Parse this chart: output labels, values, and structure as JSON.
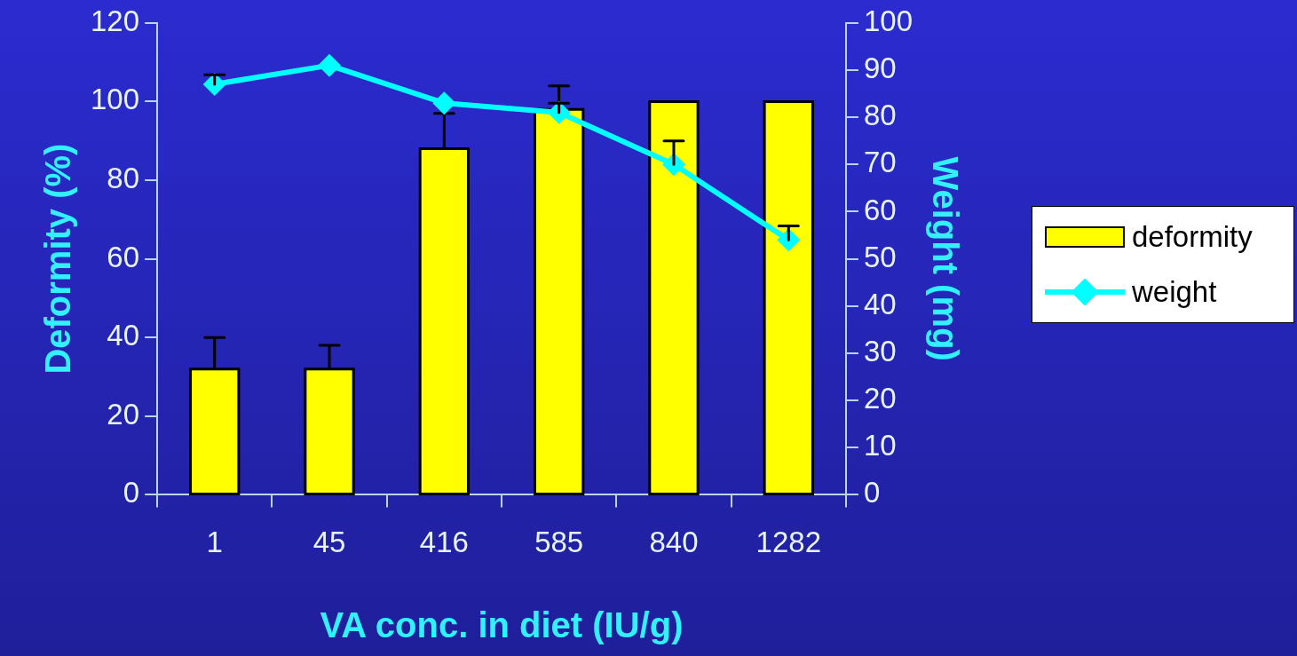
{
  "chart_data": {
    "type": "bar",
    "xlabel": "VA conc. in diet (IU/g)",
    "ylabel": "Deformity (%)",
    "y2label": "Weight (mg)",
    "categories": [
      "1",
      "45",
      "416",
      "585",
      "840",
      "1282"
    ],
    "series": [
      {
        "name": "deformity",
        "color": "#ffff00",
        "values": [
          32,
          32,
          88,
          98,
          100,
          100
        ],
        "errors": [
          [
            32,
            40
          ],
          [
            32,
            38
          ],
          [
            88,
            97
          ],
          [
            98,
            104
          ],
          0,
          0
        ]
      },
      {
        "name": "weight",
        "type": "line",
        "axis": "y2",
        "color": "#00ffff",
        "values": [
          87,
          91,
          83,
          81,
          70,
          54
        ],
        "errors": [
          [
            87,
            89
          ],
          null,
          null,
          [
            81,
            83
          ],
          [
            70,
            75
          ],
          [
            54,
            57
          ]
        ]
      }
    ],
    "ylim": [
      0,
      120
    ],
    "yticks": [
      0,
      20,
      40,
      60,
      80,
      100,
      120
    ],
    "y2lim": [
      0,
      100
    ],
    "y2ticks": [
      0,
      10,
      20,
      30,
      40,
      50,
      60,
      70,
      80,
      90,
      100
    ],
    "grid": false,
    "legend": "right",
    "marker": "diamond",
    "line_style": "solid"
  }
}
